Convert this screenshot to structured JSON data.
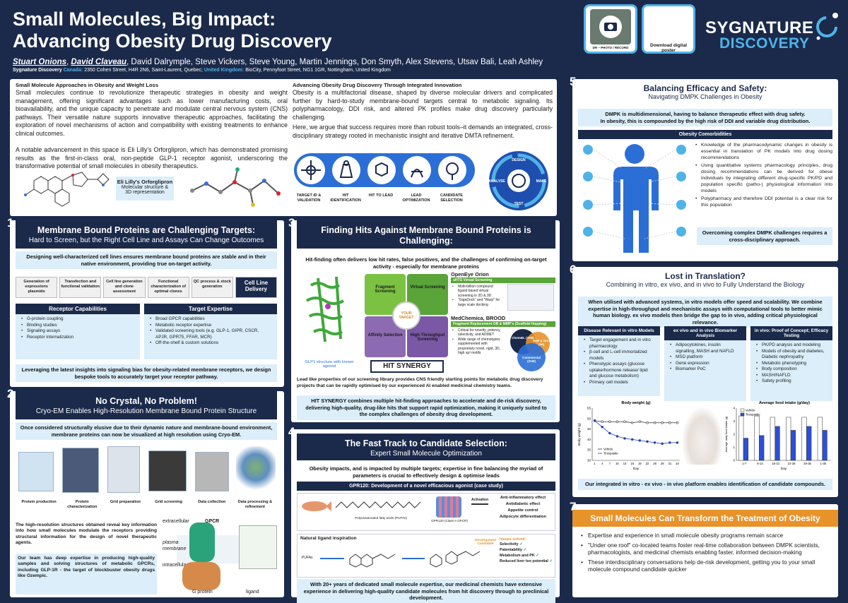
{
  "header": {
    "title_line1": "Small Molecules, Big Impact:",
    "title_line2": "Advancing Obesity Drug Discovery",
    "authors_lead1": "Stuart Onions",
    "authors_lead2": "David Claveau",
    "authors_rest": ", David Dalrymple, Steve Vickers, Steve Young, Martin Jennings, Don Smyth, Alex Stevens, Utsav Bali, Leah Ashley",
    "affil_company": "Sygnature Discovery",
    "affil_canada_label": "Canada:",
    "affil_canada": "2350 Cohen Street, H4R 2N6, Saint-Laurent, Quebec;",
    "affil_uk_label": "United Kingdom:",
    "affil_uk": "BioCity, Pennyfoot Street, NG1 1GR, Nottingham, United Kingdom",
    "qr1_label": "DR – PHOTO / RECORD",
    "qr2_label": "Download digital poster",
    "logo_top": "SYGNATURE",
    "logo_bottom": "DISCOVERY"
  },
  "intro": {
    "left_title": "Small Molecule Approaches in Obesity and Weight Loss",
    "left_p1": "Small molecules continue to revolutionize therapeutic strategies in obesity and weight management, offering significant advantages such as lower manufacturing costs, oral bioavailability, and the unique capacity to penetrate and modulate central nervous system (CNS) pathways. Their versatile nature supports innovative therapeutic approaches, facilitating the exploration of novel mechanisms of action and compatibility with existing treatments to enhance clinical outcomes.",
    "left_p2": "A notable advancement in this space is Eli Lilly's Orforglipron, which has demonstrated promising results as the first-in-class oral, non-peptide GLP-1 receptor agonist, underscoring the transformative potential of small molecules in obesity therapeutics.",
    "eli_title": "Eli Lilly's Orforglipron",
    "eli_sub1": "Molecular structure &",
    "eli_sub2": "3D representation",
    "right_title": "Advancing Obesity Drug Discovery Through Integrated Innovation",
    "right_p1": "Obesity is a multifactorial disease, shaped by diverse molecular drivers and complicated further by hard-to-study membrane-bound targets central to metabolic signaling. Its polypharmacology, DDI risk, and altered PK profiles make drug discovery particularly challenging.",
    "right_p2": "Here, we argue that success requires more than robust tools–it demands an integrated, cross-disciplinary strategy rooted in mechanistic insight and iterative DMTA refinement.",
    "pipeline": [
      "TARGET ID & VALIDATION",
      "HIT IDENTIFICATION",
      "HIT TO LEAD",
      "LEAD OPTIMIZATION",
      "CANDIDATE SELECTION"
    ],
    "dmta": [
      "DESIGN",
      "MAKE",
      "TEST",
      "ANALYSE"
    ]
  },
  "s1": {
    "num": "1",
    "title": "Membrane Bound Proteins are Challenging Targets:",
    "subtitle": "Hard to Screen, but the Right Cell Line and Assays Can Change Outcomes",
    "band": "Designing well-characterized cell lines ensures membrane bound proteins are stable and in their native environment, providing true on-target activity.",
    "steps": [
      "Generation of expressions plasmids",
      "Transfection and functional validation",
      "Cell line generation and clone assessment",
      "Functional characterization of optimal clones",
      "QC process & stock generation",
      "Cell Line Delivery"
    ],
    "rc_title": "Receptor Capabilities",
    "rc_items": [
      "G-protein coupling",
      "Binding studies",
      "Signaling assays",
      "Receptor internalization"
    ],
    "te_title": "Target Expertise",
    "te_items": [
      "Broad GPCR capabilities",
      "Metabolic receptor expertise",
      "Validated screening tools (e.g. GLP-1, GIPR, CSCR, APJR, GPR75, FFAR, MCR)",
      "Off-the-shelf & custom solutions"
    ],
    "footer": "Leveraging the latest insights into signaling bias for obesity-related membrane receptors, we design bespoke tools to accurately target your receptor pathway."
  },
  "s2": {
    "num": "2",
    "title": "No Crystal, No Problem!",
    "subtitle": "Cryo-EM Enables High-Resolution Membrane Bound Protein Structure",
    "band": "Once considered structurally elusive due to their dynamic nature and membrane-bound environment, membrane proteins can now be visualized at high resolution using Cryo-EM.",
    "steps": [
      "Protein production",
      "Protein characterization",
      "Grid preparation",
      "Grid screening",
      "Data collection",
      "Data processing & refinement"
    ],
    "p1": "The high-resolution structures obtained reveal key information into how small molecules modulate the receptors providing structural information for the design of novel therapeutic agents.",
    "p2": "Our team has deep expertise in producing high-quality samples and solving structures of metabolic GPCRs, including GLP-1R - the target of blockbuster obesity drugs like Ozempic.",
    "lbl_extra": "extracellular",
    "lbl_intra": "intracellular",
    "lbl_plasma": "plasma membrane",
    "lbl_gpcr": "GPCR",
    "lbl_gprot": "G protein",
    "lbl_ligand": "ligand"
  },
  "s3": {
    "num": "3",
    "title": "Finding Hits Against Membrane Bound Proteins is Challenging:",
    "subtitle": "An Integrated Hit-Finding Platform Will Enhance Chances of Finding the Right Starting Point",
    "band": "Hit-finding often delivers low hit rates, false positives, and the challenges of confirming on-target activity - especially for membrane proteins",
    "glp_caption": "GLP1 structure with known agonist",
    "puzzle": [
      "Fragment Screening",
      "Virtual Screening",
      "Affinity Selection",
      "High Throughput Screening"
    ],
    "puzzle_center": "YOUR TARGET",
    "synergy": "HIT SYNERGY",
    "oe_title": "OpenEye Orion",
    "oe_sub": "uHTS Virtual Screening",
    "oe_items": [
      "Multi-billion compound ligand based virtual screening in 2D & 3D",
      "\"GigaDock\" and \"Warp\" for large scale docking"
    ],
    "mc_title": "MedChemica, BROOD",
    "mc_sub": "Fragment Replacement OB & MMP's (Scaffold Hopping)",
    "mc_items": [
      "Critical for novelty, potency, selectivity, and ADMET",
      "Wide range of chemotypes supplemented with proprietary novel, rigid, 3D, high sp³ motifs"
    ],
    "venn": [
      "ChemBL (37M)",
      "Commercial (21M)",
      "MMP & ZINC (3M)"
    ],
    "lead_text": "Lead like properties of our screening library provides CNS friendly starting points for metabolic drug discovery projects that can be rapidly optimised by our experienced AI enabled medicinal chemistry teams.",
    "footer": "HIT SYNERGY combines multiple hit-finding approaches to accelerate and de-risk discovery, delivering high-quality, drug-like hits that support rapid optimization, making it uniquely suited to the complex challenges of obesity drug development."
  },
  "s4": {
    "num": "4",
    "title": "The Fast Track to Candidate Selection:",
    "subtitle": "Expert Small Molecule Optimization",
    "band": "Obesity impacts, and is impacted by multiple targets; expertise in fine balancing the myriad of parameters is crucial to effectively design & optimise leads",
    "case_title": "GPR120: Development of a novel efficacious agonist (case study)",
    "pufa": "Polyunsaturated fatty acids (PUFAs)",
    "gpr": "GPR120 (Class A GPCR)",
    "activation": "Activation",
    "effects": [
      "Anti-inflammatory effect",
      "Antidiabetic effect",
      "Appetite control",
      "Adipocyte differentiation"
    ],
    "nat_title": "Natural ligand inspiration",
    "pufas": "PUFAs",
    "dev_candidate": "Development Candidate",
    "issues_title": "Issues solved:",
    "issues": [
      "Selectivity",
      "Patentability",
      "Metabolism and PK",
      "Reduced liver tox potential"
    ],
    "footer": "With 20+ years of dedicated small molecule expertise, our medicinal chemists have extensive experience in delivering high-quality candidate molecules from hit discovery through to preclinical development."
  },
  "s5": {
    "num": "5",
    "title": "Balancing Efficacy and Safety:",
    "subtitle": "Navigating DMPK Challenges in Obesity",
    "band1": "DMPK is multidimensional, having to balance therapeutic effect with drug safety.",
    "band2": "In obesity, this is compounded by the high risk of DDI and variable drug distribution.",
    "comorb": "Obesity Comorbidities",
    "bullets": [
      "Knowledge of the pharmacodynamic changes in obesity is essential in translation of PK models into drug dosing recommendations",
      "Using quantitative systems pharmacology principles, drug dosing recommendations can be derived for obese individuals by integrating different drug-specific PK/PD and population specific (patho-) physiological information into models",
      "Polypharmacy and therefore DDI potential is a clear risk for this population"
    ],
    "footer": "Overcoming complex DMPK challenges requires a cross-disciplinary approach."
  },
  "s6": {
    "num": "6",
    "title": "Lost in Translation?",
    "subtitle": "Combining in vitro, ex vivo, and in vivo to Fully Understand the Biology",
    "band": "When utilised with advanced systems, in vitro models offer speed and scalability. We combine expertise in high-throughput and mechanistic assays with computational tools to better mimic human biology. ex vivo models then bridge the gap to in vivo, adding critical physiological relevance.",
    "col1_title": "Disease Relevant in vitro Models",
    "col1": [
      "Target engagement and in vitro pharmacology",
      "β-cell and L-cell immortalized models",
      "Phenotypic assays (glucose uptake/hormone release/ lipid and glucose metabolism)",
      "Primary cell models"
    ],
    "col2_title": "ex vivo and in vivo Biomarker Analysis",
    "col2": [
      "Adipocytokines, insulin signalling, MASH and NAFLD",
      "MSD platform",
      "Gene expression",
      "Biomarker PoC"
    ],
    "col3_title": "in vivo: Proof of Concept; Efficacy Testing",
    "col3": [
      "PK/PD analysis and modeling",
      "Models of obesity and diabetes, Diabetic nephropathy",
      "Metabolic phenotyping",
      "Body composition",
      "MASH/NAFLD",
      "Safety profiling"
    ],
    "footer": "Our integrated in vitro - ex vivo - in vivo platform enables identification of candidate compounds."
  },
  "s7": {
    "num": "7",
    "title": "Small Molecules Can Transform the Treatment of Obesity",
    "bullets": [
      "Expertise and experience in small molecule obesity programs remain scarce",
      "\"Under one roof\" co-located teams foster real-time collaboration between DMPK scientists, pharmacologists, and medicinal chemists enabling faster, informed decision-making",
      "These interdisciplinary conversations help de-risk development, getting you to your small molecule compound candidate quicker"
    ]
  },
  "chart_data": [
    {
      "type": "line",
      "title": "Body weight (g)",
      "xlabel": "Day",
      "ylabel": "Body weight (g)",
      "x": [
        1,
        4,
        7,
        10,
        13,
        16,
        19,
        22,
        25,
        28,
        31,
        34
      ],
      "ylim": [
        30,
        55
      ],
      "yticks": [
        30,
        35,
        40,
        45,
        50,
        55
      ],
      "series": [
        {
          "name": "Vehicle",
          "values": [
            49,
            48.5,
            48.5,
            48.5,
            48.5,
            48,
            48.5,
            48,
            48,
            48,
            48,
            48
          ]
        },
        {
          "name": "Tirzepatide",
          "values": [
            49,
            46,
            43,
            41.5,
            40.5,
            40,
            39.5,
            39,
            38.5,
            38,
            38.5,
            38.5
          ]
        }
      ]
    },
    {
      "type": "bar",
      "title": "Average food intake (g/day)",
      "xlabel": "Day",
      "ylabel": "Average daily food intake (g)",
      "categories": [
        "1-7",
        "8-14",
        "15-21",
        "22-28",
        "29-35",
        "1-35"
      ],
      "ylim": [
        0,
        4
      ],
      "series": [
        {
          "name": "Vehicle",
          "values": [
            3.4,
            3.4,
            3.3,
            3.3,
            3.3,
            3.3
          ]
        },
        {
          "name": "Tirzepatide",
          "values": [
            1.7,
            1.9,
            2.6,
            2.3,
            2.6,
            2.3
          ]
        }
      ]
    }
  ],
  "colors": {
    "navy": "#1b2a4a",
    "accent": "#4fb3e8",
    "band": "#dbeefa",
    "orange": "#e8922a"
  }
}
